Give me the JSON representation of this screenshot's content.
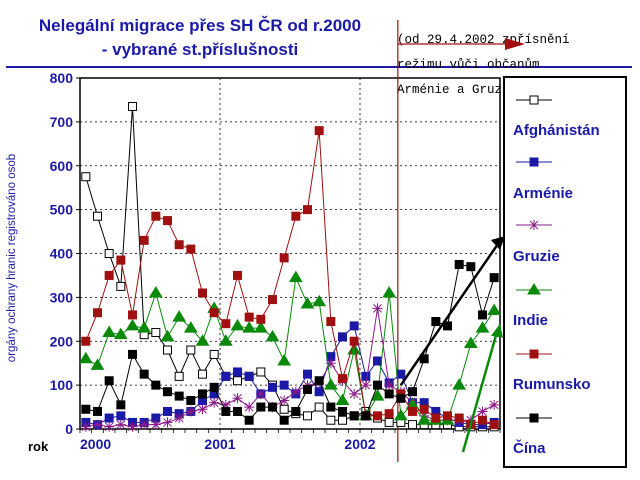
{
  "chart_data": {
    "type": "line",
    "title": "Nelegální migrace přes SH ČR od r.2000",
    "subtitle": "- vybrané st.příslušnosti",
    "ylabel": "orgány ochrany hranic registrováno osob",
    "xlabel": "rok",
    "ylim": [
      0,
      800
    ],
    "yticks": [
      "0",
      "100",
      "200",
      "300",
      "400",
      "500",
      "600",
      "700",
      "800"
    ],
    "xticks": [
      {
        "label": "2000",
        "index": 0
      },
      {
        "label": "2001",
        "index": 12
      },
      {
        "label": "2002",
        "index": 24
      }
    ],
    "grid": true,
    "legend_position": "right",
    "annotation": {
      "lines": [
        "(od 29.4.2002 zpřísnění",
        "režimu vůči občanům",
        "Arménie a Gruzie)"
      ]
    },
    "x": [
      "2000-01",
      "2000-02",
      "2000-03",
      "2000-04",
      "2000-05",
      "2000-06",
      "2000-07",
      "2000-08",
      "2000-09",
      "2000-10",
      "2000-11",
      "2000-12",
      "2001-01",
      "2001-02",
      "2001-03",
      "2001-04",
      "2001-05",
      "2001-06",
      "2001-07",
      "2001-08",
      "2001-09",
      "2001-10",
      "2001-11",
      "2001-12",
      "2002-01",
      "2002-02",
      "2002-03",
      "2002-04",
      "2002-05",
      "2002-06",
      "2002-07",
      "2002-08",
      "2002-09",
      "2002-10",
      "2002-11",
      "2002-12"
    ],
    "series": [
      {
        "name": "Afghánistán",
        "color": "#000000",
        "marker": "square-open",
        "values": [
          575,
          485,
          400,
          325,
          735,
          215,
          220,
          180,
          120,
          180,
          125,
          170,
          120,
          110,
          120,
          130,
          100,
          45,
          35,
          30,
          50,
          20,
          20,
          30,
          40,
          25,
          15,
          15,
          10,
          10,
          10,
          10,
          5,
          5,
          5,
          5
        ]
      },
      {
        "name": "Arménie",
        "color": "#1a1aa6",
        "marker": "square",
        "values": [
          15,
          10,
          25,
          30,
          15,
          15,
          25,
          40,
          35,
          40,
          65,
          80,
          120,
          130,
          120,
          80,
          95,
          100,
          80,
          125,
          85,
          165,
          210,
          235,
          120,
          155,
          105,
          125,
          60,
          60,
          40,
          25,
          15,
          10,
          10,
          15
        ]
      },
      {
        "name": "Gruzie",
        "color": "#8a1a8a",
        "marker": "star",
        "values": [
          5,
          10,
          5,
          10,
          5,
          10,
          10,
          15,
          25,
          40,
          45,
          60,
          55,
          70,
          50,
          80,
          50,
          65,
          85,
          100,
          105,
          150,
          110,
          80,
          100,
          275,
          100,
          85,
          60,
          30,
          20,
          20,
          20,
          20,
          40,
          55
        ]
      },
      {
        "name": "Indie",
        "color": "#0a8a0a",
        "marker": "triangle",
        "values": [
          160,
          145,
          220,
          215,
          235,
          230,
          310,
          210,
          255,
          230,
          200,
          275,
          200,
          235,
          230,
          230,
          210,
          155,
          345,
          285,
          290,
          100,
          65,
          180,
          30,
          75,
          310,
          30,
          55,
          20,
          20,
          20,
          100,
          195,
          230,
          270
        ]
      },
      {
        "name": "Rumunsko",
        "color": "#a01010",
        "marker": "square",
        "values": [
          200,
          265,
          350,
          385,
          260,
          430,
          485,
          475,
          420,
          410,
          310,
          265,
          240,
          350,
          255,
          250,
          295,
          390,
          485,
          500,
          680,
          245,
          115,
          200,
          30,
          30,
          35,
          80,
          40,
          45,
          25,
          30,
          25,
          10,
          20,
          10
        ]
      },
      {
        "name": "Čína",
        "color": "#000000",
        "marker": "square",
        "values": [
          45,
          40,
          110,
          55,
          170,
          125,
          100,
          85,
          75,
          65,
          80,
          95,
          40,
          40,
          20,
          50,
          50,
          20,
          40,
          90,
          110,
          50,
          40,
          30,
          30,
          100,
          80,
          70,
          85,
          160,
          245,
          235,
          375,
          370,
          260,
          345
        ]
      }
    ]
  }
}
